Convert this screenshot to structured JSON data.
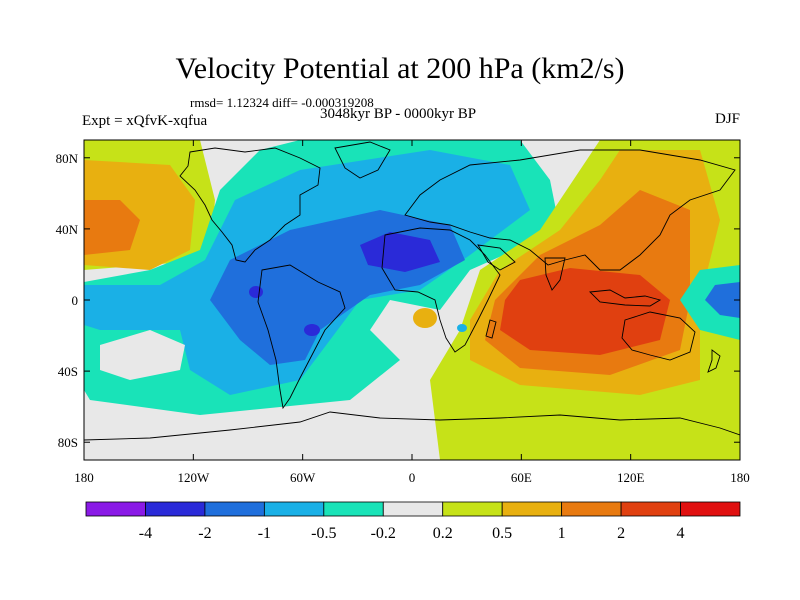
{
  "header": {
    "title": "Velocity Potential at 200 hPa (km2/s)",
    "stats": "rmsd= 1.12324  diff= -0.000319208",
    "experiment": "Expt = xQfvK-xqfua",
    "period": "3048kyr BP - 0000kyr BP",
    "season": "DJF"
  },
  "map": {
    "projection": "cylindrical-equidistant",
    "lon_range": [
      -180,
      180
    ],
    "lat_range": [
      -90,
      90
    ],
    "lat_ticks": [
      {
        "value": 80,
        "label": "80N"
      },
      {
        "value": 40,
        "label": "40N"
      },
      {
        "value": 0,
        "label": "0"
      },
      {
        "value": -40,
        "label": "40S"
      },
      {
        "value": -80,
        "label": "80S"
      }
    ],
    "lon_ticks": [
      {
        "value": -180,
        "label": "180"
      },
      {
        "value": -120,
        "label": "120W"
      },
      {
        "value": -60,
        "label": "60W"
      },
      {
        "value": 0,
        "label": "0"
      },
      {
        "value": 60,
        "label": "60E"
      },
      {
        "value": 120,
        "label": "120E"
      },
      {
        "value": 180,
        "label": "180"
      }
    ]
  },
  "colorbar": {
    "labels": [
      "-4",
      "-2",
      "-1",
      "-0.5",
      "-0.2",
      "0.2",
      "0.5",
      "1",
      "2",
      "4"
    ],
    "colors": [
      "#8a1ae6",
      "#2a2ad8",
      "#1f6fdc",
      "#1ab0e6",
      "#19e3b8",
      "#e8e8e8",
      "#c6e218",
      "#e8b010",
      "#e87a10",
      "#e04010",
      "#e01010"
    ]
  },
  "fields": {
    "background": "#e8e8e8",
    "coast_color": "#000000"
  }
}
